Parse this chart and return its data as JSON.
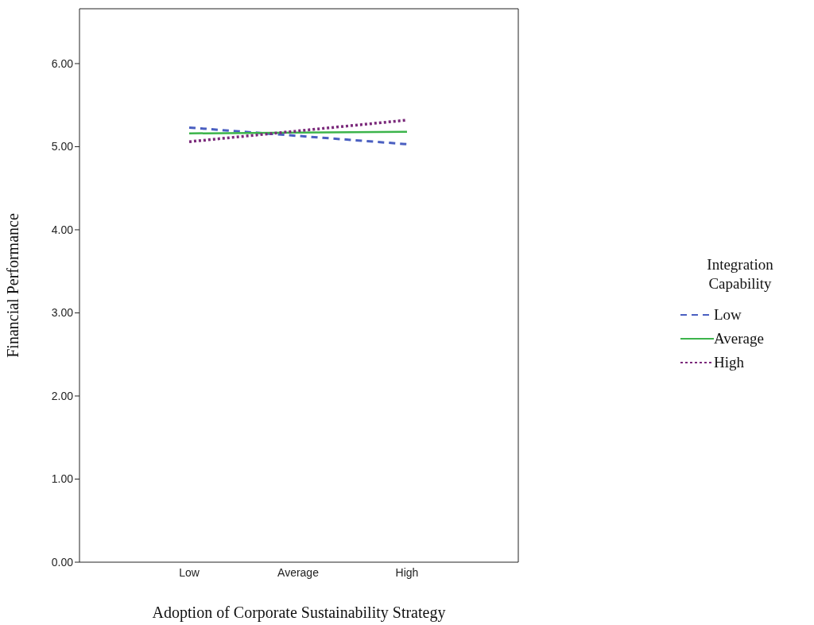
{
  "chart_data": {
    "type": "line",
    "xlabel": "Adoption of Corporate Sustainability Strategy",
    "ylabel": "Financial Performance",
    "legend_title": "Integration Capability",
    "categories": [
      "Low",
      "Average",
      "High"
    ],
    "series": [
      {
        "name": "Low",
        "color": "#4a5fc1",
        "line_style": "dashed",
        "values": [
          5.23,
          5.13,
          5.03
        ]
      },
      {
        "name": "Average",
        "color": "#3cb44b",
        "line_style": "solid",
        "values": [
          5.16,
          5.17,
          5.18
        ]
      },
      {
        "name": "High",
        "color": "#7b2a7b",
        "line_style": "dotted",
        "values": [
          5.06,
          5.19,
          5.32
        ]
      }
    ],
    "ylim": [
      0,
      6.66
    ],
    "yticks": [
      {
        "value": 0,
        "label": "0.00"
      },
      {
        "value": 1,
        "label": "1.00"
      },
      {
        "value": 2,
        "label": "2.00"
      },
      {
        "value": 3,
        "label": "3.00"
      },
      {
        "value": 4,
        "label": "4.00"
      },
      {
        "value": 5,
        "label": "5.00"
      },
      {
        "value": 6,
        "label": "6.00"
      }
    ],
    "grid": false,
    "legend": "right",
    "marker": "none"
  }
}
